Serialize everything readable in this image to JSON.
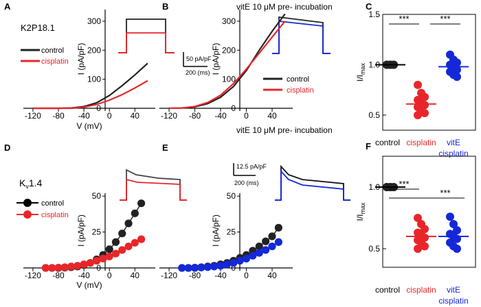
{
  "colors": {
    "control": "#222222",
    "cisplatin": "#e8262a",
    "vite": "#1428d8",
    "axis": "#000000"
  },
  "panels": {
    "A": {
      "letter": "A",
      "label": "K2P18.1"
    },
    "B": {
      "letter": "B",
      "header": "vitE 10 μM pre- incubation"
    },
    "C": {
      "letter": "C"
    },
    "D": {
      "letter": "D",
      "label_main": "K",
      "label_sub": "v",
      "label_rest": "1.4"
    },
    "E": {
      "letter": "E",
      "header": "vitE 10 μM pre- incubation"
    },
    "F": {
      "letter": "F"
    }
  },
  "scale_bars": {
    "top": {
      "current": "50 pA/pF",
      "time": "200 (ms)"
    },
    "bottom": {
      "current": "12.5 pA/pF",
      "time": "200 (ms)"
    }
  },
  "legends": {
    "A": [
      "control",
      "cisplatin"
    ],
    "B": [
      "control",
      "cisplatin"
    ],
    "D": [
      "control",
      "cisplatin"
    ]
  },
  "significance": {
    "C": [
      "***",
      "***"
    ],
    "F": [
      "***",
      "***"
    ]
  },
  "chart_data": [
    {
      "id": "A",
      "type": "line",
      "xlabel": "V (mV)",
      "ylabel": "I (pA/pF)",
      "xlim": [
        -135,
        72
      ],
      "ylim": [
        -10,
        340
      ],
      "xticks": [
        -120,
        -80,
        -40,
        0,
        40
      ],
      "yticks": [
        0,
        100,
        200,
        300
      ],
      "series": [
        {
          "name": "control",
          "x": [
            -120,
            -100,
            -80,
            -60,
            -40,
            -20,
            0,
            20,
            40,
            60
          ],
          "y": [
            0,
            0,
            0,
            1,
            6,
            19,
            44,
            78,
            115,
            155
          ]
        },
        {
          "name": "cisplatin",
          "x": [
            -120,
            -100,
            -80,
            -60,
            -40,
            -20,
            0,
            20,
            40,
            60
          ],
          "y": [
            0,
            0,
            0,
            0,
            4,
            13,
            28,
            47,
            70,
            95
          ]
        }
      ]
    },
    {
      "id": "B",
      "type": "line",
      "xlabel": "",
      "ylabel": "I (pA/pF)",
      "xlim": [
        -135,
        72
      ],
      "ylim": [
        -10,
        340
      ],
      "xticks": [
        -120,
        -80,
        -40,
        0,
        40
      ],
      "yticks": [
        0,
        100,
        200,
        300
      ],
      "series": [
        {
          "name": "control",
          "x": [
            -120,
            -100,
            -80,
            -60,
            -40,
            -20,
            0,
            20,
            40,
            60
          ],
          "y": [
            0,
            1,
            5,
            16,
            38,
            75,
            130,
            200,
            265,
            325
          ]
        },
        {
          "name": "cisplatin",
          "x": [
            -120,
            -100,
            -80,
            -60,
            -40,
            -20,
            0,
            20,
            40,
            60
          ],
          "y": [
            0,
            1,
            6,
            20,
            45,
            85,
            135,
            190,
            245,
            300
          ]
        }
      ]
    },
    {
      "id": "C",
      "type": "scatter",
      "ylabel": "I/I",
      "ylabel_sub": "max",
      "ylim": [
        0.35,
        1.5
      ],
      "yticks": [
        0.5,
        1.0,
        1.5
      ],
      "categories": [
        "control",
        "cisplatin",
        "vitE cisplatin"
      ],
      "groups": [
        {
          "name": "control",
          "color_key": "control",
          "mean": 1.0,
          "values": [
            1.0,
            1.0,
            1.0,
            1.0,
            1.0,
            1.0,
            1.0,
            1.0,
            1.0
          ]
        },
        {
          "name": "cisplatin",
          "color_key": "cisplatin",
          "mean": 0.61,
          "values": [
            0.8,
            0.72,
            0.68,
            0.65,
            0.62,
            0.6,
            0.58,
            0.55,
            0.52,
            0.5
          ]
        },
        {
          "name": "vitE cisplatin",
          "color_key": "vite",
          "mean": 0.98,
          "values": [
            1.1,
            1.05,
            1.02,
            1.0,
            0.98,
            0.95,
            0.93,
            0.9,
            0.88
          ]
        }
      ]
    },
    {
      "id": "D",
      "type": "line",
      "xlabel": "V (mV)",
      "ylabel": "I (pA/pF)",
      "xlim": [
        -135,
        72
      ],
      "ylim": [
        -1.5,
        52
      ],
      "xticks": [
        -120,
        -80,
        -40,
        0,
        40
      ],
      "yticks": [
        0,
        25,
        50
      ],
      "series": [
        {
          "name": "control",
          "x": [
            -100,
            -90,
            -80,
            -70,
            -60,
            -50,
            -40,
            -30,
            -20,
            -10,
            0,
            10,
            20,
            30,
            40,
            50
          ],
          "y": [
            0,
            0,
            0,
            0.2,
            0.5,
            1,
            2,
            3.5,
            6,
            9,
            13,
            18,
            24,
            31,
            38,
            45
          ]
        },
        {
          "name": "cisplatin",
          "x": [
            -100,
            -90,
            -80,
            -70,
            -60,
            -50,
            -40,
            -30,
            -20,
            -10,
            0,
            10,
            20,
            30,
            40,
            50
          ],
          "y": [
            0,
            0,
            0.2,
            0.5,
            1,
            1.5,
            2.5,
            3.5,
            5,
            6.5,
            8,
            10,
            12.5,
            15,
            17.5,
            20
          ]
        }
      ]
    },
    {
      "id": "E",
      "type": "line",
      "xlabel": "",
      "ylabel": "I (pA/pF)",
      "xlim": [
        -135,
        72
      ],
      "ylim": [
        -1.5,
        52
      ],
      "xticks": [
        -120,
        -80,
        -40,
        0,
        40
      ],
      "yticks": [
        0,
        25,
        50
      ],
      "series": [
        {
          "name": "control",
          "x": [
            -100,
            -90,
            -80,
            -70,
            -60,
            -50,
            -40,
            -30,
            -20,
            -10,
            0,
            10,
            20,
            30,
            40,
            50
          ],
          "y": [
            0,
            0,
            0.2,
            0.5,
            1,
            1.5,
            2.5,
            3.5,
            5,
            7,
            9,
            12,
            15,
            18.5,
            22,
            28
          ]
        },
        {
          "name": "vitE cisplatin",
          "x": [
            -100,
            -90,
            -80,
            -70,
            -60,
            -50,
            -40,
            -30,
            -20,
            -10,
            0,
            10,
            20,
            30,
            40,
            50
          ],
          "y": [
            0,
            0,
            0,
            0.3,
            0.6,
            1,
            1.5,
            2.5,
            3.5,
            5,
            6.5,
            8.5,
            10.5,
            12.5,
            15,
            18
          ]
        }
      ]
    },
    {
      "id": "F",
      "type": "scatter",
      "ylabel": "I/I",
      "ylabel_sub": "max",
      "ylim": [
        0.35,
        1.25
      ],
      "yticks": [
        0.5,
        1.0
      ],
      "categories": [
        "control",
        "cisplatin",
        "vitE cisplatin"
      ],
      "groups": [
        {
          "name": "control",
          "color_key": "control",
          "mean": 1.0,
          "values": [
            1.0,
            1.0,
            1.0,
            1.0,
            1.0,
            1.0,
            1.0,
            1.0
          ]
        },
        {
          "name": "cisplatin",
          "color_key": "cisplatin",
          "mean": 0.6,
          "values": [
            0.75,
            0.7,
            0.66,
            0.63,
            0.61,
            0.59,
            0.57,
            0.55,
            0.52,
            0.5
          ]
        },
        {
          "name": "vitE cisplatin",
          "color_key": "vite",
          "mean": 0.6,
          "values": [
            0.76,
            0.7,
            0.65,
            0.62,
            0.6,
            0.58,
            0.55,
            0.52,
            0.5
          ]
        }
      ]
    }
  ]
}
